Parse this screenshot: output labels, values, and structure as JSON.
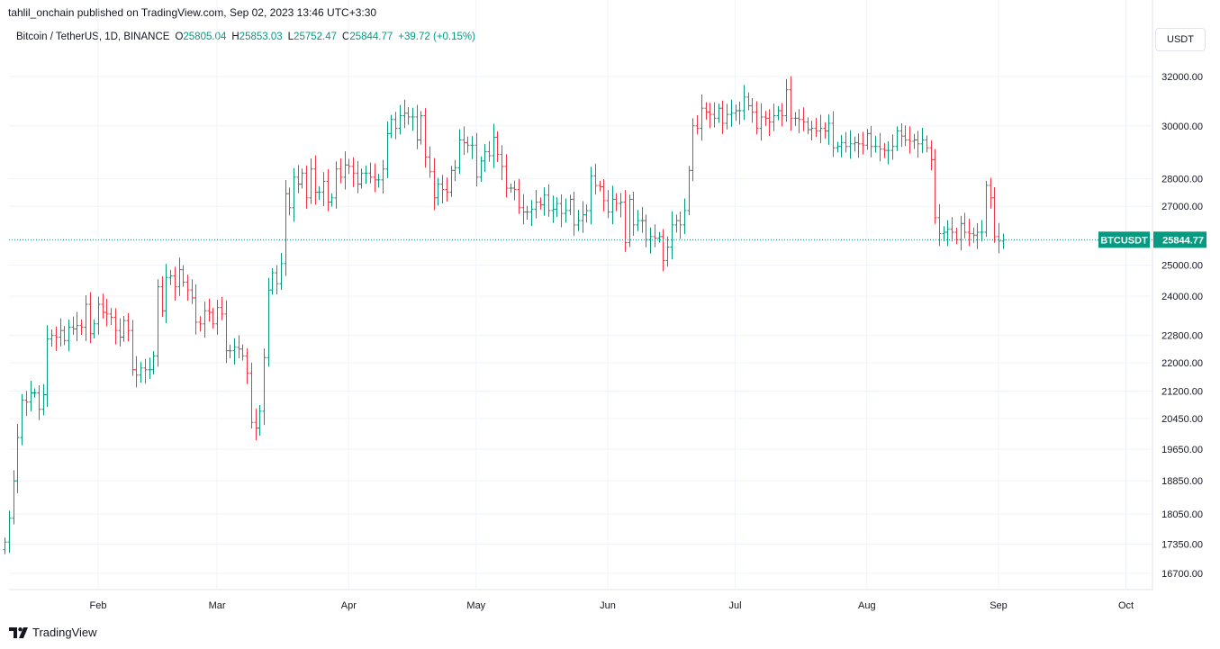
{
  "header": {
    "published_by": "tahlil_onchain published on TradingView.com, Sep 02, 2023 13:46 UTC+3:30"
  },
  "legend": {
    "symbol": "Bitcoin / TetherUS, 1D, BINANCE",
    "open_label": "O",
    "open": "25805.04",
    "high_label": "H",
    "high": "25853.03",
    "low_label": "L",
    "low": "25752.47",
    "close_label": "C",
    "close": "25844.77",
    "change": "+39.72 (+0.15%)"
  },
  "currency_button": "USDT",
  "price_tag": {
    "symbol": "BTCUSDT",
    "price": "25844.77"
  },
  "footer": {
    "brand": "TradingView"
  },
  "colors": {
    "up": "#089981",
    "down": "#f23645",
    "grid": "#f0f3fa",
    "axis_text": "#131722"
  },
  "chart_data": {
    "type": "ohlc",
    "title": "Bitcoin / TetherUS, 1D, BINANCE",
    "scale": "log",
    "grid": true,
    "ylim": [
      16300,
      33000
    ],
    "y_ticks": [
      "32000.00",
      "30000.00",
      "28000.00",
      "27000.00",
      "25000.00",
      "24000.00",
      "22800.00",
      "22000.00",
      "21200.00",
      "20450.00",
      "19650.00",
      "18850.00",
      "18050.00",
      "17350.00",
      "16700.00"
    ],
    "x_ticks": [
      {
        "label": "Feb",
        "date": "2023-02-01"
      },
      {
        "label": "Mar",
        "date": "2023-03-01"
      },
      {
        "label": "Apr",
        "date": "2023-04-01"
      },
      {
        "label": "May",
        "date": "2023-05-01"
      },
      {
        "label": "Jun",
        "date": "2023-06-01"
      },
      {
        "label": "Jul",
        "date": "2023-07-01"
      },
      {
        "label": "Aug",
        "date": "2023-08-01"
      },
      {
        "label": "Sep",
        "date": "2023-09-01"
      },
      {
        "label": "Oct",
        "date": "2023-10-01"
      }
    ],
    "last_price": 25844.77,
    "closes": [
      {
        "date": "2023-01-10",
        "close": 17400
      },
      {
        "date": "2023-01-11",
        "close": 17950
      },
      {
        "date": "2023-01-12",
        "close": 18850
      },
      {
        "date": "2023-01-13",
        "close": 19950
      },
      {
        "date": "2023-01-14",
        "close": 20950
      },
      {
        "date": "2023-01-15",
        "close": 20900
      },
      {
        "date": "2023-01-16",
        "close": 21150
      },
      {
        "date": "2023-01-17",
        "close": 21150
      },
      {
        "date": "2023-01-18",
        "close": 20700
      },
      {
        "date": "2023-01-19",
        "close": 21100
      },
      {
        "date": "2023-01-20",
        "close": 22700
      },
      {
        "date": "2023-01-21",
        "close": 22800
      },
      {
        "date": "2023-01-22",
        "close": 22750
      },
      {
        "date": "2023-01-23",
        "close": 22950
      },
      {
        "date": "2023-01-24",
        "close": 22650
      },
      {
        "date": "2023-01-25",
        "close": 23050
      },
      {
        "date": "2023-01-26",
        "close": 23000
      },
      {
        "date": "2023-01-27",
        "close": 23100
      },
      {
        "date": "2023-01-28",
        "close": 23050
      },
      {
        "date": "2023-01-29",
        "close": 23750
      },
      {
        "date": "2023-01-30",
        "close": 22850
      },
      {
        "date": "2023-01-31",
        "close": 23150
      },
      {
        "date": "2023-02-01",
        "close": 23750
      },
      {
        "date": "2023-02-02",
        "close": 23500
      },
      {
        "date": "2023-02-03",
        "close": 23450
      },
      {
        "date": "2023-02-04",
        "close": 23350
      },
      {
        "date": "2023-02-05",
        "close": 22950
      },
      {
        "date": "2023-02-06",
        "close": 22750
      },
      {
        "date": "2023-02-07",
        "close": 23250
      },
      {
        "date": "2023-02-08",
        "close": 22950
      },
      {
        "date": "2023-02-09",
        "close": 21800
      },
      {
        "date": "2023-02-10",
        "close": 21650
      },
      {
        "date": "2023-02-11",
        "close": 21850
      },
      {
        "date": "2023-02-12",
        "close": 21800
      },
      {
        "date": "2023-02-13",
        "close": 21800
      },
      {
        "date": "2023-02-14",
        "close": 22200
      },
      {
        "date": "2023-02-15",
        "close": 24300
      },
      {
        "date": "2023-02-16",
        "close": 23550
      },
      {
        "date": "2023-02-17",
        "close": 24600
      },
      {
        "date": "2023-02-18",
        "close": 24650
      },
      {
        "date": "2023-02-19",
        "close": 24300
      },
      {
        "date": "2023-02-20",
        "close": 24850
      },
      {
        "date": "2023-02-21",
        "close": 24450
      },
      {
        "date": "2023-02-22",
        "close": 24200
      },
      {
        "date": "2023-02-23",
        "close": 23950
      },
      {
        "date": "2023-02-24",
        "close": 23200
      },
      {
        "date": "2023-02-25",
        "close": 23150
      },
      {
        "date": "2023-02-26",
        "close": 23550
      },
      {
        "date": "2023-02-27",
        "close": 23500
      },
      {
        "date": "2023-02-28",
        "close": 23150
      },
      {
        "date": "2023-03-01",
        "close": 23650
      },
      {
        "date": "2023-03-02",
        "close": 23450
      },
      {
        "date": "2023-03-03",
        "close": 22350
      },
      {
        "date": "2023-03-04",
        "close": 22350
      },
      {
        "date": "2023-03-05",
        "close": 22450
      },
      {
        "date": "2023-03-06",
        "close": 22400
      },
      {
        "date": "2023-03-07",
        "close": 22200
      },
      {
        "date": "2023-03-08",
        "close": 21700
      },
      {
        "date": "2023-03-09",
        "close": 20350
      },
      {
        "date": "2023-03-10",
        "close": 20200
      },
      {
        "date": "2023-03-11",
        "close": 20650
      },
      {
        "date": "2023-03-12",
        "close": 22150
      },
      {
        "date": "2023-03-13",
        "close": 24200
      },
      {
        "date": "2023-03-14",
        "close": 24750
      },
      {
        "date": "2023-03-15",
        "close": 24400
      },
      {
        "date": "2023-03-16",
        "close": 25050
      },
      {
        "date": "2023-03-17",
        "close": 27450
      },
      {
        "date": "2023-03-18",
        "close": 26950
      },
      {
        "date": "2023-03-19",
        "close": 28050
      },
      {
        "date": "2023-03-20",
        "close": 27800
      },
      {
        "date": "2023-03-21",
        "close": 28200
      },
      {
        "date": "2023-03-22",
        "close": 27300
      },
      {
        "date": "2023-03-23",
        "close": 28350
      },
      {
        "date": "2023-03-24",
        "close": 27500
      },
      {
        "date": "2023-03-25",
        "close": 27500
      },
      {
        "date": "2023-03-26",
        "close": 27900
      },
      {
        "date": "2023-03-27",
        "close": 27150
      },
      {
        "date": "2023-03-28",
        "close": 27300
      },
      {
        "date": "2023-03-29",
        "close": 28350
      },
      {
        "date": "2023-03-30",
        "close": 28050
      },
      {
        "date": "2023-03-31",
        "close": 28500
      },
      {
        "date": "2023-04-01",
        "close": 28450
      },
      {
        "date": "2023-04-02",
        "close": 28200
      },
      {
        "date": "2023-04-03",
        "close": 27800
      },
      {
        "date": "2023-04-04",
        "close": 28200
      },
      {
        "date": "2023-04-05",
        "close": 28200
      },
      {
        "date": "2023-04-06",
        "close": 28050
      },
      {
        "date": "2023-04-07",
        "close": 27950
      },
      {
        "date": "2023-04-08",
        "close": 27950
      },
      {
        "date": "2023-04-09",
        "close": 28350
      },
      {
        "date": "2023-04-10",
        "close": 29700
      },
      {
        "date": "2023-04-11",
        "close": 30250
      },
      {
        "date": "2023-04-12",
        "close": 29900
      },
      {
        "date": "2023-04-13",
        "close": 30400
      },
      {
        "date": "2023-04-14",
        "close": 30500
      },
      {
        "date": "2023-04-15",
        "close": 30350
      },
      {
        "date": "2023-04-16",
        "close": 30350
      },
      {
        "date": "2023-04-17",
        "close": 29450
      },
      {
        "date": "2023-04-18",
        "close": 30400
      },
      {
        "date": "2023-04-19",
        "close": 28800
      },
      {
        "date": "2023-04-20",
        "close": 28250
      },
      {
        "date": "2023-04-21",
        "close": 27300
      },
      {
        "date": "2023-04-22",
        "close": 27800
      },
      {
        "date": "2023-04-23",
        "close": 27600
      },
      {
        "date": "2023-04-24",
        "close": 27500
      },
      {
        "date": "2023-04-25",
        "close": 28300
      },
      {
        "date": "2023-04-26",
        "close": 28400
      },
      {
        "date": "2023-04-27",
        "close": 29450
      },
      {
        "date": "2023-04-28",
        "close": 29350
      },
      {
        "date": "2023-04-29",
        "close": 29250
      },
      {
        "date": "2023-04-30",
        "close": 29250
      },
      {
        "date": "2023-05-01",
        "close": 28050
      },
      {
        "date": "2023-05-02",
        "close": 28650
      },
      {
        "date": "2023-05-03",
        "close": 29000
      },
      {
        "date": "2023-05-04",
        "close": 28850
      },
      {
        "date": "2023-05-05",
        "close": 29550
      },
      {
        "date": "2023-05-06",
        "close": 28900
      },
      {
        "date": "2023-05-07",
        "close": 28450
      },
      {
        "date": "2023-05-08",
        "close": 27650
      },
      {
        "date": "2023-05-09",
        "close": 27650
      },
      {
        "date": "2023-05-10",
        "close": 27600
      },
      {
        "date": "2023-05-11",
        "close": 26950
      },
      {
        "date": "2023-05-12",
        "close": 26800
      },
      {
        "date": "2023-05-13",
        "close": 26800
      },
      {
        "date": "2023-05-14",
        "close": 26900
      },
      {
        "date": "2023-05-15",
        "close": 27150
      },
      {
        "date": "2023-05-16",
        "close": 27050
      },
      {
        "date": "2023-05-17",
        "close": 27400
      },
      {
        "date": "2023-05-18",
        "close": 26850
      },
      {
        "date": "2023-05-19",
        "close": 26900
      },
      {
        "date": "2023-05-20",
        "close": 27100
      },
      {
        "date": "2023-05-21",
        "close": 26750
      },
      {
        "date": "2023-05-22",
        "close": 26850
      },
      {
        "date": "2023-05-23",
        "close": 27250
      },
      {
        "date": "2023-05-24",
        "close": 26350
      },
      {
        "date": "2023-05-25",
        "close": 26500
      },
      {
        "date": "2023-05-26",
        "close": 26700
      },
      {
        "date": "2023-05-27",
        "close": 26850
      },
      {
        "date": "2023-05-28",
        "close": 28100
      },
      {
        "date": "2023-05-29",
        "close": 27750
      },
      {
        "date": "2023-05-30",
        "close": 27700
      },
      {
        "date": "2023-05-31",
        "close": 27200
      },
      {
        "date": "2023-06-01",
        "close": 26800
      },
      {
        "date": "2023-06-02",
        "close": 27250
      },
      {
        "date": "2023-06-03",
        "close": 27100
      },
      {
        "date": "2023-06-04",
        "close": 27150
      },
      {
        "date": "2023-06-05",
        "close": 25750
      },
      {
        "date": "2023-06-06",
        "close": 27250
      },
      {
        "date": "2023-06-07",
        "close": 26350
      },
      {
        "date": "2023-06-08",
        "close": 26500
      },
      {
        "date": "2023-06-09",
        "close": 26500
      },
      {
        "date": "2023-06-10",
        "close": 25850
      },
      {
        "date": "2023-06-11",
        "close": 25950
      },
      {
        "date": "2023-06-12",
        "close": 25900
      },
      {
        "date": "2023-06-13",
        "close": 25950
      },
      {
        "date": "2023-06-14",
        "close": 25150
      },
      {
        "date": "2023-06-15",
        "close": 25600
      },
      {
        "date": "2023-06-16",
        "close": 26350
      },
      {
        "date": "2023-06-17",
        "close": 26500
      },
      {
        "date": "2023-06-18",
        "close": 26350
      },
      {
        "date": "2023-06-19",
        "close": 26850
      },
      {
        "date": "2023-06-20",
        "close": 28300
      },
      {
        "date": "2023-06-21",
        "close": 30000
      },
      {
        "date": "2023-06-22",
        "close": 29900
      },
      {
        "date": "2023-06-23",
        "close": 30700
      },
      {
        "date": "2023-06-24",
        "close": 30550
      },
      {
        "date": "2023-06-25",
        "close": 30450
      },
      {
        "date": "2023-06-26",
        "close": 30300
      },
      {
        "date": "2023-06-27",
        "close": 30700
      },
      {
        "date": "2023-06-28",
        "close": 30100
      },
      {
        "date": "2023-06-29",
        "close": 30450
      },
      {
        "date": "2023-06-30",
        "close": 30500
      },
      {
        "date": "2023-07-01",
        "close": 30600
      },
      {
        "date": "2023-07-02",
        "close": 30600
      },
      {
        "date": "2023-07-03",
        "close": 31150
      },
      {
        "date": "2023-07-04",
        "close": 30800
      },
      {
        "date": "2023-07-05",
        "close": 30550
      },
      {
        "date": "2023-07-06",
        "close": 29900
      },
      {
        "date": "2023-07-07",
        "close": 30350
      },
      {
        "date": "2023-07-08",
        "close": 30300
      },
      {
        "date": "2023-07-09",
        "close": 30150
      },
      {
        "date": "2023-07-10",
        "close": 30400
      },
      {
        "date": "2023-07-11",
        "close": 30600
      },
      {
        "date": "2023-07-12",
        "close": 30400
      },
      {
        "date": "2023-07-13",
        "close": 31450
      },
      {
        "date": "2023-07-14",
        "close": 30300
      },
      {
        "date": "2023-07-15",
        "close": 30300
      },
      {
        "date": "2023-07-16",
        "close": 30250
      },
      {
        "date": "2023-07-17",
        "close": 30150
      },
      {
        "date": "2023-07-18",
        "close": 29850
      },
      {
        "date": "2023-07-19",
        "close": 29900
      },
      {
        "date": "2023-07-20",
        "close": 29800
      },
      {
        "date": "2023-07-21",
        "close": 29900
      },
      {
        "date": "2023-07-22",
        "close": 29800
      },
      {
        "date": "2023-07-23",
        "close": 30100
      },
      {
        "date": "2023-07-24",
        "close": 29150
      },
      {
        "date": "2023-07-25",
        "close": 29200
      },
      {
        "date": "2023-07-26",
        "close": 29350
      },
      {
        "date": "2023-07-27",
        "close": 29200
      },
      {
        "date": "2023-07-28",
        "close": 29300
      },
      {
        "date": "2023-07-29",
        "close": 29350
      },
      {
        "date": "2023-07-30",
        "close": 29300
      },
      {
        "date": "2023-07-31",
        "close": 29250
      },
      {
        "date": "2023-08-01",
        "close": 29700
      },
      {
        "date": "2023-08-02",
        "close": 29200
      },
      {
        "date": "2023-08-03",
        "close": 29200
      },
      {
        "date": "2023-08-04",
        "close": 29100
      },
      {
        "date": "2023-08-05",
        "close": 29050
      },
      {
        "date": "2023-08-06",
        "close": 29050
      },
      {
        "date": "2023-08-07",
        "close": 29200
      },
      {
        "date": "2023-08-08",
        "close": 29800
      },
      {
        "date": "2023-08-09",
        "close": 29600
      },
      {
        "date": "2023-08-10",
        "close": 29450
      },
      {
        "date": "2023-08-11",
        "close": 29400
      },
      {
        "date": "2023-08-12",
        "close": 29450
      },
      {
        "date": "2023-08-13",
        "close": 29300
      },
      {
        "date": "2023-08-14",
        "close": 29450
      },
      {
        "date": "2023-08-15",
        "close": 29150
      },
      {
        "date": "2023-08-16",
        "close": 28700
      },
      {
        "date": "2023-08-17",
        "close": 26600
      },
      {
        "date": "2023-08-18",
        "close": 26050
      },
      {
        "date": "2023-08-19",
        "close": 26100
      },
      {
        "date": "2023-08-20",
        "close": 26200
      },
      {
        "date": "2023-08-21",
        "close": 26100
      },
      {
        "date": "2023-08-22",
        "close": 25850
      },
      {
        "date": "2023-08-23",
        "close": 26400
      },
      {
        "date": "2023-08-24",
        "close": 26100
      },
      {
        "date": "2023-08-25",
        "close": 26050
      },
      {
        "date": "2023-08-26",
        "close": 26000
      },
      {
        "date": "2023-08-27",
        "close": 26100
      },
      {
        "date": "2023-08-28",
        "close": 26100
      },
      {
        "date": "2023-08-29",
        "close": 27750
      },
      {
        "date": "2023-08-30",
        "close": 27300
      },
      {
        "date": "2023-08-31",
        "close": 25950
      },
      {
        "date": "2023-09-01",
        "close": 25800
      },
      {
        "date": "2023-09-02",
        "close": 25845
      }
    ]
  }
}
